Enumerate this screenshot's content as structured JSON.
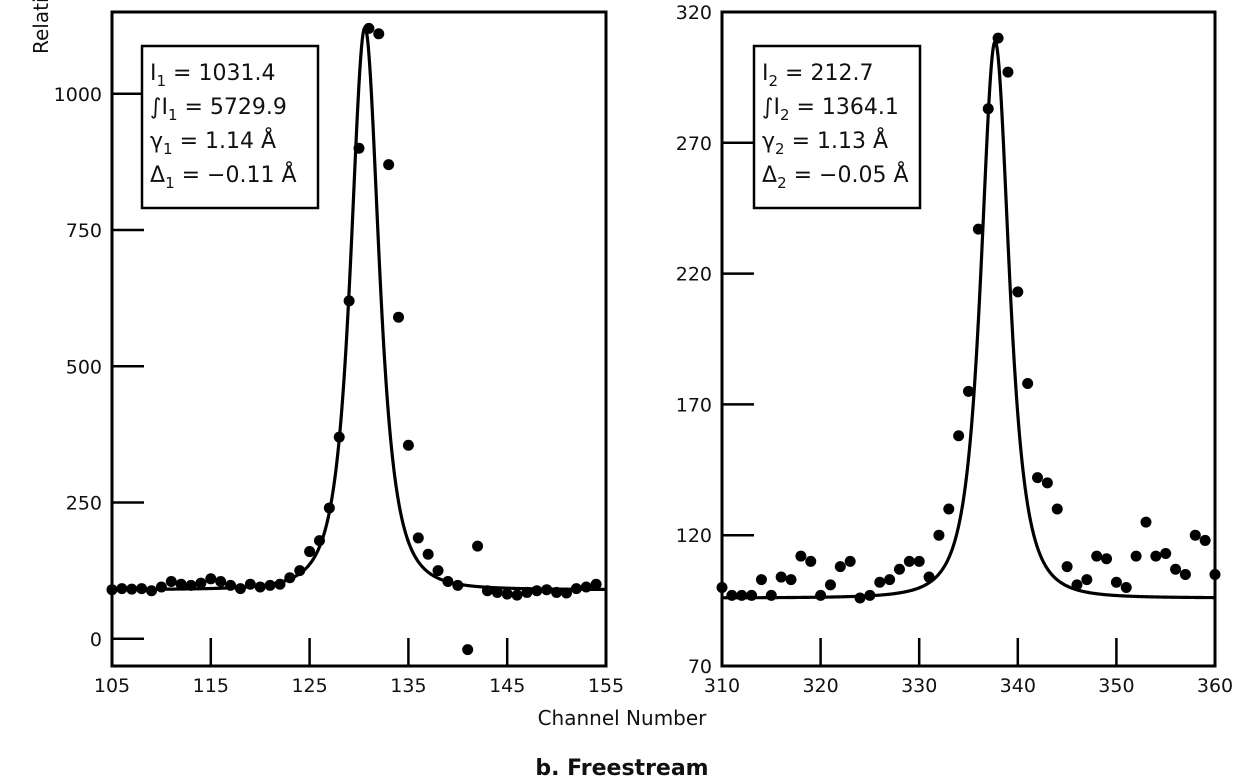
{
  "figure": {
    "caption": "b. Freestream",
    "ylabel": "Relative",
    "xlabel": "Channel Number"
  },
  "chart_data": [
    {
      "type": "scatter",
      "panel": "left",
      "xlim": [
        105,
        155
      ],
      "ylim": [
        -50,
        1150
      ],
      "x_ticks": [
        105,
        115,
        125,
        135,
        145,
        155
      ],
      "x_tick_labels": [
        "105",
        "115",
        "125",
        "135",
        "145",
        "155"
      ],
      "y_ticks": [
        0,
        250,
        500,
        750,
        1000
      ],
      "y_tick_labels": [
        "0",
        "250",
        "500",
        "750",
        "1000"
      ],
      "annotation": [
        {
          "pre": "I",
          "sub": "1",
          "post": " = 1031.4"
        },
        {
          "pre": "∫I",
          "sub": "1",
          "post": " = 5729.9"
        },
        {
          "pre": "γ",
          "sub": "1",
          "post": " = 1.14 Å"
        },
        {
          "pre": "Δ",
          "sub": "1",
          "post": " = −0.11 Å"
        }
      ],
      "fit": {
        "baseline": 90,
        "peak_height": 1031.4,
        "center": 130.6,
        "fwhm_channels": 4.6
      },
      "points": {
        "x": [
          105,
          106,
          107,
          108,
          109,
          110,
          111,
          112,
          113,
          114,
          115,
          116,
          117,
          118,
          119,
          120,
          121,
          122,
          123,
          124,
          125,
          126,
          127,
          128,
          129,
          130,
          131,
          132,
          133,
          134,
          135,
          136,
          137,
          138,
          139,
          140,
          141,
          142,
          143,
          144,
          145,
          146,
          147,
          148,
          149,
          150,
          151,
          152,
          153,
          154
        ],
        "y": [
          90,
          92,
          91,
          92,
          88,
          95,
          105,
          100,
          98,
          102,
          110,
          105,
          98,
          92,
          100,
          95,
          98,
          100,
          112,
          125,
          160,
          180,
          240,
          370,
          620,
          900,
          1120,
          1110,
          870,
          590,
          355,
          185,
          155,
          125,
          105,
          98,
          -20,
          170,
          88,
          85,
          82,
          80,
          85,
          88,
          90,
          85,
          84,
          92,
          95,
          100
        ]
      }
    },
    {
      "type": "scatter",
      "panel": "right",
      "xlim": [
        310,
        360
      ],
      "ylim": [
        70,
        320
      ],
      "x_ticks": [
        310,
        320,
        330,
        340,
        350,
        360
      ],
      "x_tick_labels": [
        "310",
        "320",
        "330",
        "340",
        "350",
        "360"
      ],
      "y_ticks": [
        70,
        120,
        170,
        220,
        270,
        320
      ],
      "y_tick_labels": [
        "70",
        "120",
        "170",
        "220",
        "270",
        "320"
      ],
      "annotation": [
        {
          "pre": "I",
          "sub": "2",
          "post": " = 212.7"
        },
        {
          "pre": "∫I",
          "sub": "2",
          "post": " = 1364.1"
        },
        {
          "pre": "γ",
          "sub": "2",
          "post": " = 1.13 Å"
        },
        {
          "pre": "Δ",
          "sub": "2",
          "post": " = −0.05 Å"
        }
      ],
      "fit": {
        "baseline": 96,
        "peak_height": 212.7,
        "center": 337.7,
        "fwhm_channels": 4.6
      },
      "points": {
        "x": [
          310,
          311,
          312,
          313,
          314,
          315,
          316,
          317,
          318,
          319,
          320,
          321,
          322,
          323,
          324,
          325,
          326,
          327,
          328,
          329,
          330,
          331,
          332,
          333,
          334,
          335,
          336,
          337,
          338,
          339,
          340,
          341,
          342,
          343,
          344,
          345,
          346,
          347,
          348,
          349,
          350,
          351,
          352,
          353,
          354,
          355,
          356,
          357,
          358,
          359,
          360
        ],
        "y": [
          100,
          97,
          97,
          97,
          103,
          97,
          104,
          103,
          112,
          110,
          97,
          101,
          108,
          110,
          96,
          97,
          102,
          103,
          107,
          110,
          110,
          104,
          120,
          130,
          158,
          175,
          237,
          283,
          310,
          297,
          213,
          178,
          142,
          140,
          130,
          108,
          101,
          103,
          112,
          111,
          102,
          100,
          112,
          125,
          112,
          113,
          107,
          105,
          120,
          118,
          105
        ]
      }
    }
  ]
}
